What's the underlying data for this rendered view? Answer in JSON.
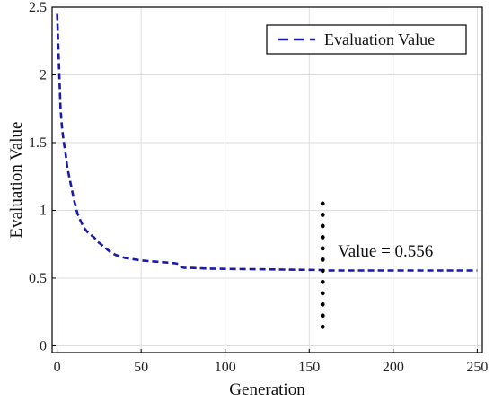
{
  "chart_data": {
    "type": "line",
    "title": "",
    "xlabel": "Generation",
    "ylabel": "Evaluation Value",
    "xlim": [
      -3,
      253
    ],
    "ylim": [
      -0.05,
      2.5
    ],
    "xticks": [
      0,
      50,
      100,
      150,
      200,
      250
    ],
    "yticks": [
      0,
      0.5,
      1,
      1.5,
      2,
      2.5
    ],
    "xtick_labels": [
      "0",
      "50",
      "100",
      "150",
      "200",
      "250"
    ],
    "ytick_labels": [
      "0",
      "0.5",
      "1",
      "1.5",
      "2",
      "2.5"
    ],
    "grid": true,
    "legend_position": "top-right",
    "series": [
      {
        "name": "Evaluation Value",
        "color": "#1a1aa8",
        "style": "dashed",
        "x": [
          0,
          1,
          2,
          3,
          4,
          5,
          6,
          8,
          10,
          12,
          14,
          16,
          18,
          20,
          22,
          24,
          26,
          28,
          30,
          32,
          35,
          40,
          45,
          50,
          55,
          60,
          65,
          70,
          72,
          74,
          76,
          80,
          90,
          100,
          120,
          140,
          155,
          158,
          160,
          180,
          200,
          220,
          250
        ],
        "y": [
          2.45,
          2.1,
          1.75,
          1.6,
          1.5,
          1.42,
          1.32,
          1.2,
          1.08,
          0.98,
          0.92,
          0.87,
          0.84,
          0.82,
          0.8,
          0.77,
          0.75,
          0.73,
          0.71,
          0.69,
          0.67,
          0.65,
          0.64,
          0.63,
          0.625,
          0.62,
          0.615,
          0.61,
          0.605,
          0.58,
          0.575,
          0.575,
          0.57,
          0.568,
          0.565,
          0.562,
          0.56,
          0.558,
          0.556,
          0.556,
          0.556,
          0.556,
          0.556
        ]
      }
    ],
    "marker": {
      "style": "dotted-vertical",
      "x": 158,
      "y_from": 0.14,
      "y_to": 1.05,
      "dots": 12,
      "color": "#000000"
    },
    "annotations": [
      {
        "text": "Value = 0.556",
        "x": 167,
        "y": 0.7
      }
    ]
  }
}
